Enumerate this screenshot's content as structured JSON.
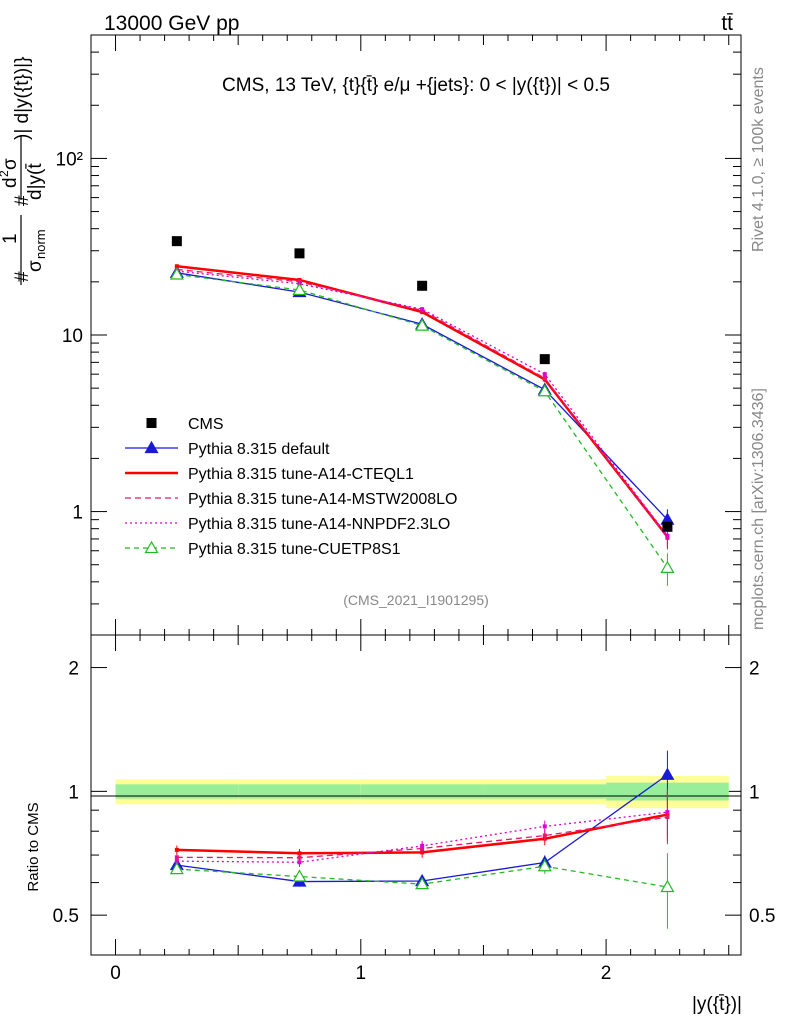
{
  "header": {
    "energy_label": "13000 GeV pp",
    "process_label": "tt̄"
  },
  "side_labels": {
    "rivet": "Rivet 4.1.0, ≥ 100k events",
    "mcplots": "mcplots.cern.ch [arXiv:1306.3436]"
  },
  "chart_data": {
    "type": "line",
    "title": "CMS, 13 TeV, {t}{t̄} e/μ +{jets}: 0 < |y({t})| < 0.5",
    "analysis_id": "(CMS_2021_I1901295)",
    "xlabel": "|y({t̄})|",
    "ylabel": "#1/σnorm #d²σ/d|y({t})| d|y({t̄})|",
    "ylabel_parts": {
      "frac1_num": "1",
      "frac1_den": "σ",
      "frac1_den_sub": "norm",
      "hash": "#",
      "frac2_num": "d",
      "frac2_sup": "2",
      "frac2_sigma": "σ",
      "frac2_den": "d|y(t̄",
      "frac2_tail": ")| d|y({t})|}"
    },
    "ratio_ylabel": "Ratio to CMS",
    "xlim": [
      -0.1,
      2.55
    ],
    "ylim": [
      0.2,
      500
    ],
    "yscale": "log",
    "ratio_ylim": [
      0.4,
      2.4
    ],
    "x_ticks": [
      "0",
      "1",
      "2"
    ],
    "y_ticks_main": [
      "1",
      "10",
      "10²"
    ],
    "y_ticks_ratio": [
      "0.5",
      "1",
      "2"
    ],
    "bins": [
      [
        0.0,
        0.5
      ],
      [
        0.5,
        1.0
      ],
      [
        1.0,
        1.5
      ],
      [
        1.5,
        2.0
      ],
      [
        2.0,
        2.5
      ]
    ],
    "x": [
      0.25,
      0.75,
      1.25,
      1.75,
      2.25
    ],
    "data": {
      "name": "CMS",
      "values": [
        34,
        29,
        19,
        7.3,
        0.82
      ],
      "band_inner": [
        0.04,
        0.04,
        0.04,
        0.04,
        0.05
      ],
      "band_outer": [
        0.07,
        0.07,
        0.07,
        0.07,
        0.09
      ]
    },
    "series": [
      {
        "name": "Pythia 8.315 default",
        "color": "#1a1ad6",
        "dash": "",
        "marker": "triangle-filled",
        "values": [
          22.5,
          17.5,
          11.5,
          4.9,
          0.9
        ],
        "errors": [
          0.5,
          0.5,
          0.3,
          0.2,
          0.13
        ]
      },
      {
        "name": "Pythia 8.315 tune-A14-CTEQL1",
        "color": "#ff0000",
        "dash": "",
        "marker": "none",
        "width": 2.5,
        "values": [
          24.5,
          20.5,
          13.5,
          5.6,
          0.72
        ],
        "errors": [
          0.6,
          0.5,
          0.4,
          0.2,
          0.1
        ]
      },
      {
        "name": "Pythia 8.315 tune-A14-MSTW2008LO",
        "color": "#e8186e",
        "dash": "6,4",
        "marker": "none",
        "values": [
          23.5,
          20.0,
          13.8,
          5.7,
          0.71
        ],
        "errors": [
          0.6,
          0.5,
          0.4,
          0.2,
          0.1
        ]
      },
      {
        "name": "Pythia 8.315 tune-A14-NNPDF2.3LO",
        "color": "#e000d0",
        "dash": "2,3",
        "marker": "none",
        "values": [
          23.0,
          19.5,
          14.0,
          6.0,
          0.73
        ],
        "errors": [
          0.6,
          0.5,
          0.4,
          0.2,
          0.1
        ]
      },
      {
        "name": "Pythia 8.315 tune-CUETP8S1",
        "color": "#22bb22",
        "dash": "5,4",
        "marker": "triangle-open",
        "values": [
          22.0,
          18.0,
          11.3,
          4.8,
          0.48
        ],
        "errors": [
          0.5,
          0.5,
          0.3,
          0.2,
          0.1
        ]
      }
    ]
  }
}
